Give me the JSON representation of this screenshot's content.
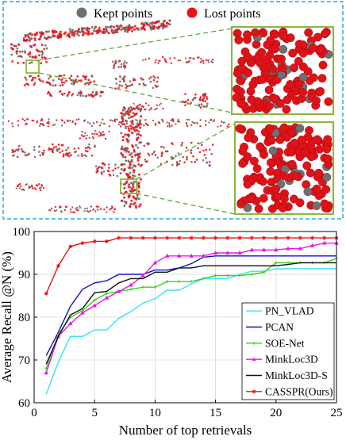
{
  "top_panel": {
    "legend": [
      {
        "label": "Kept points",
        "color": "#6f6f6f"
      },
      {
        "label": "Lost points",
        "color": "#e8141a"
      }
    ],
    "frame_color": "#2aa7e0",
    "zoom_frame_color": "#8db83c",
    "zoom_line_color": "#5ea33a"
  },
  "chart_data": {
    "type": "line",
    "xlabel": "Number of top retrievals",
    "ylabel": "Average Recall @N (%)",
    "xlim": [
      0,
      25
    ],
    "ylim": [
      60,
      100
    ],
    "xticks": [
      0,
      5,
      10,
      15,
      20,
      25
    ],
    "yticks": [
      60,
      70,
      80,
      90,
      100
    ],
    "grid": true,
    "legend_position": "bottom-right",
    "x": [
      1,
      2,
      3,
      4,
      5,
      6,
      7,
      8,
      9,
      10,
      11,
      12,
      13,
      14,
      15,
      16,
      17,
      18,
      19,
      20,
      21,
      22,
      23,
      24,
      25
    ],
    "series": [
      {
        "name": "PN_VLAD",
        "color": "#35e6f0",
        "marker": "",
        "values": [
          62.0,
          69.5,
          75.5,
          75.5,
          77.0,
          77.0,
          79.7,
          81.3,
          83.3,
          84.3,
          86.3,
          86.3,
          87.7,
          89.0,
          89.0,
          89.0,
          90.0,
          90.7,
          90.7,
          91.3,
          91.3,
          91.3,
          91.3,
          91.3,
          91.3
        ]
      },
      {
        "name": "PCAN",
        "color": "#1010c8",
        "marker": "",
        "values": [
          71.0,
          76.5,
          82.5,
          86.5,
          88.0,
          88.5,
          90.0,
          90.0,
          90.0,
          91.0,
          91.0,
          91.5,
          92.5,
          94.0,
          94.3,
          94.3,
          94.3,
          94.3,
          94.3,
          94.3,
          94.3,
          94.3,
          94.3,
          94.3,
          94.3
        ]
      },
      {
        "name": "SOE-Net",
        "color": "#34d21f",
        "marker": "+",
        "values": [
          68.0,
          76.0,
          80.0,
          81.5,
          84.0,
          85.5,
          86.0,
          86.5,
          87.0,
          87.0,
          88.3,
          88.3,
          88.3,
          89.0,
          89.7,
          89.7,
          89.7,
          90.0,
          90.5,
          92.7,
          92.7,
          92.7,
          92.7,
          92.7,
          93.7
        ]
      },
      {
        "name": "MinkLoc3D",
        "color": "#e818e8",
        "marker": "triangle",
        "values": [
          67.0,
          75.5,
          78.5,
          81.0,
          82.7,
          84.5,
          86.0,
          87.5,
          89.7,
          92.7,
          94.3,
          94.3,
          94.3,
          94.3,
          95.0,
          95.0,
          95.0,
          95.7,
          95.7,
          95.7,
          96.0,
          96.0,
          96.7,
          97.3,
          97.3
        ]
      },
      {
        "name": "MinkLoc3D-S",
        "color": "#111111",
        "marker": "",
        "values": [
          69.0,
          75.5,
          80.5,
          82.0,
          85.7,
          86.0,
          88.0,
          89.0,
          89.0,
          90.5,
          90.5,
          91.5,
          91.5,
          92.0,
          92.0,
          92.0,
          92.0,
          92.0,
          92.0,
          92.0,
          92.3,
          92.7,
          92.7,
          92.7,
          92.7
        ]
      },
      {
        "name": "CASSPR(Ours)",
        "color": "#e61414",
        "marker": "star",
        "values": [
          85.5,
          92.0,
          96.5,
          97.3,
          97.7,
          97.7,
          98.5,
          98.5,
          98.5,
          98.5,
          98.5,
          98.5,
          98.5,
          98.5,
          98.5,
          98.5,
          98.5,
          98.5,
          98.5,
          98.5,
          98.5,
          98.5,
          98.5,
          98.5,
          98.5
        ]
      }
    ]
  }
}
